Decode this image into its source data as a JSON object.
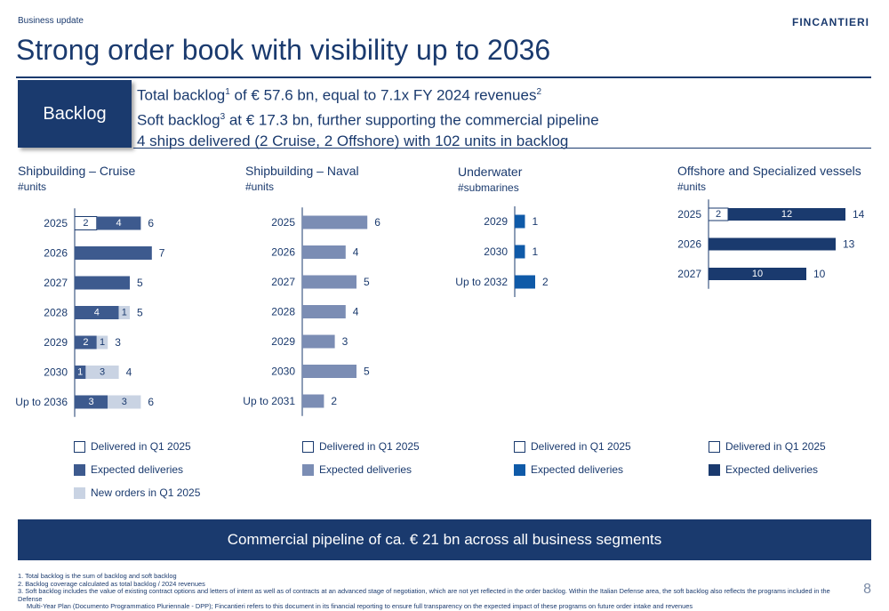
{
  "header": {
    "section": "Business update",
    "logo": "FINCANTIERI",
    "title": "Strong order book with visibility up to 2036"
  },
  "backlog": {
    "label": "Backlog",
    "line1_pre": "Total backlog",
    "line1_sup1": "1",
    "line1_mid": " of € 57.6 bn, equal to 7.1x FY 2024 revenues",
    "line1_sup2": "2",
    "line2_pre": "Soft backlog",
    "line2_sup": "3",
    "line2_post": " at € 17.3 bn, further supporting the commercial pipeline",
    "line3": "4 ships delivered (2 Cruise, 2 Offshore) with 102 units in backlog"
  },
  "colors": {
    "navy": "#1a3a6e",
    "cruise_expected": "#3d5a8e",
    "cruise_new": "#c9d3e3",
    "naval_expected": "#7b8db4",
    "underwater_expected": "#0f5aa8",
    "offshore_expected": "#1a3a6e"
  },
  "chart_data": [
    {
      "type": "bar",
      "title": "Shipbuilding – Cruise",
      "subtitle": "#units",
      "categories": [
        "2025",
        "2026",
        "2027",
        "2028",
        "2029",
        "2030",
        "Up to 2036"
      ],
      "series": [
        {
          "name": "Delivered in Q1 2025",
          "values": [
            2,
            0,
            0,
            0,
            0,
            0,
            0
          ]
        },
        {
          "name": "Expected deliveries",
          "values": [
            4,
            7,
            5,
            4,
            2,
            1,
            3
          ]
        },
        {
          "name": "New orders in Q1 2025",
          "values": [
            0,
            0,
            0,
            1,
            1,
            3,
            3
          ]
        }
      ],
      "totals": [
        6,
        7,
        5,
        5,
        3,
        4,
        6
      ],
      "segment_labels": [
        [
          "2",
          "4",
          ""
        ],
        [
          "",
          "",
          ""
        ],
        [
          "",
          "",
          ""
        ],
        [
          "",
          "4",
          "1"
        ],
        [
          "",
          "2",
          "1"
        ],
        [
          "",
          "1",
          "3"
        ],
        [
          "",
          "3",
          "3"
        ]
      ]
    },
    {
      "type": "bar",
      "title": "Shipbuilding – Naval",
      "subtitle": "#units",
      "categories": [
        "2025",
        "2026",
        "2027",
        "2028",
        "2029",
        "2030",
        "Up to 2031"
      ],
      "series": [
        {
          "name": "Delivered in Q1 2025",
          "values": [
            0,
            0,
            0,
            0,
            0,
            0,
            0
          ]
        },
        {
          "name": "Expected deliveries",
          "values": [
            6,
            4,
            5,
            4,
            3,
            5,
            2
          ]
        }
      ],
      "totals": [
        6,
        4,
        5,
        4,
        3,
        5,
        2
      ]
    },
    {
      "type": "bar",
      "title": "Underwater",
      "subtitle": "#submarines",
      "categories": [
        "2029",
        "2030",
        "Up to 2032"
      ],
      "series": [
        {
          "name": "Delivered in Q1 2025",
          "values": [
            0,
            0,
            0
          ]
        },
        {
          "name": "Expected deliveries",
          "values": [
            1,
            1,
            2
          ]
        }
      ],
      "totals": [
        1,
        1,
        2
      ]
    },
    {
      "type": "bar",
      "title": "Offshore and Specialized vessels",
      "subtitle": "#units",
      "categories": [
        "2025",
        "2026",
        "2027"
      ],
      "series": [
        {
          "name": "Delivered in Q1 2025",
          "values": [
            2,
            0,
            0
          ]
        },
        {
          "name": "Expected deliveries",
          "values": [
            12,
            13,
            10
          ]
        }
      ],
      "totals": [
        14,
        13,
        10
      ],
      "segment_labels": [
        [
          "2",
          "12"
        ],
        [
          "",
          ""
        ],
        [
          "",
          "10"
        ]
      ]
    }
  ],
  "legends": {
    "cruise": [
      "Delivered in Q1 2025",
      "Expected deliveries",
      "New orders in Q1 2025"
    ],
    "naval": [
      "Delivered in Q1 2025",
      "Expected deliveries"
    ],
    "underwater": [
      "Delivered in Q1 2025",
      "Expected deliveries"
    ],
    "offshore": [
      "Delivered in Q1 2025",
      "Expected deliveries"
    ]
  },
  "banner": "Commercial pipeline of ca. € 21 bn across all business segments",
  "footnotes": [
    "1.  Total backlog is the sum of backlog and soft backlog",
    "2.  Backlog coverage calculated as total backlog / 2024 revenues",
    "3.  Soft backlog includes the value of existing contract options and letters of intent as well as of contracts at an advanced stage of negotiation, which are not yet reflected in the order backlog. Within the Italian Defense area, the soft backlog also reflects the programs included in the Defense",
    "     Multi-Year Plan (Documento Programmatico Pluriennale - DPP); Fincantieri refers to this document in its financial reporting to ensure full transparency on the expected impact of these programs on future order intake and revenues"
  ],
  "page_number": "8"
}
